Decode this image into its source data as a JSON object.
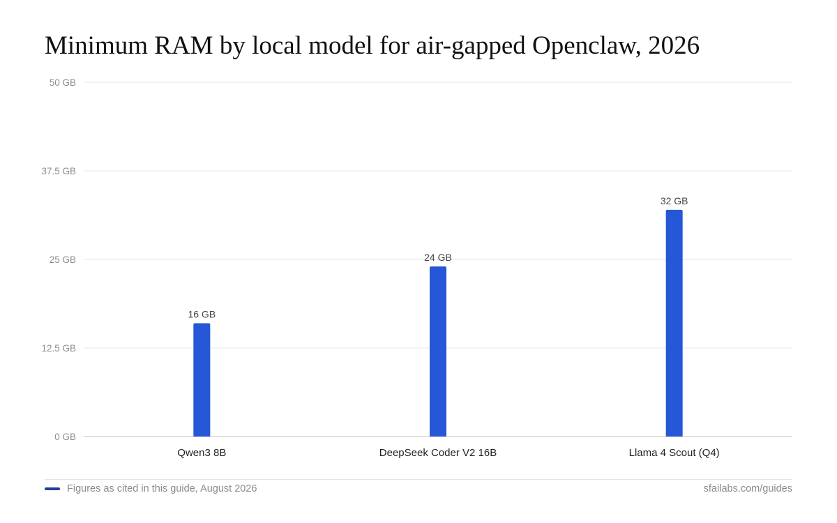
{
  "chart_data": {
    "type": "bar",
    "title": "Minimum RAM by local model for air-gapped Openclaw, 2026",
    "categories": [
      "Qwen3 8B",
      "DeepSeek Coder V2 16B",
      "Llama 4 Scout (Q4)"
    ],
    "values": [
      16,
      24,
      32
    ],
    "value_labels": [
      "16 GB",
      "24 GB",
      "32 GB"
    ],
    "ylim": [
      0,
      50
    ],
    "yticks": [
      0,
      12.5,
      25,
      37.5,
      50
    ],
    "ytick_labels": [
      "0 GB",
      "12.5 GB",
      "25 GB",
      "37.5 GB",
      "50 GB"
    ],
    "xlabel": "",
    "ylabel": "",
    "grid": true,
    "bar_color": "#2557d6"
  },
  "footer": {
    "note": "Figures as cited in this guide, August 2026",
    "source": "sfailabs.com/guides",
    "swatch_color": "#1f3f9e"
  }
}
